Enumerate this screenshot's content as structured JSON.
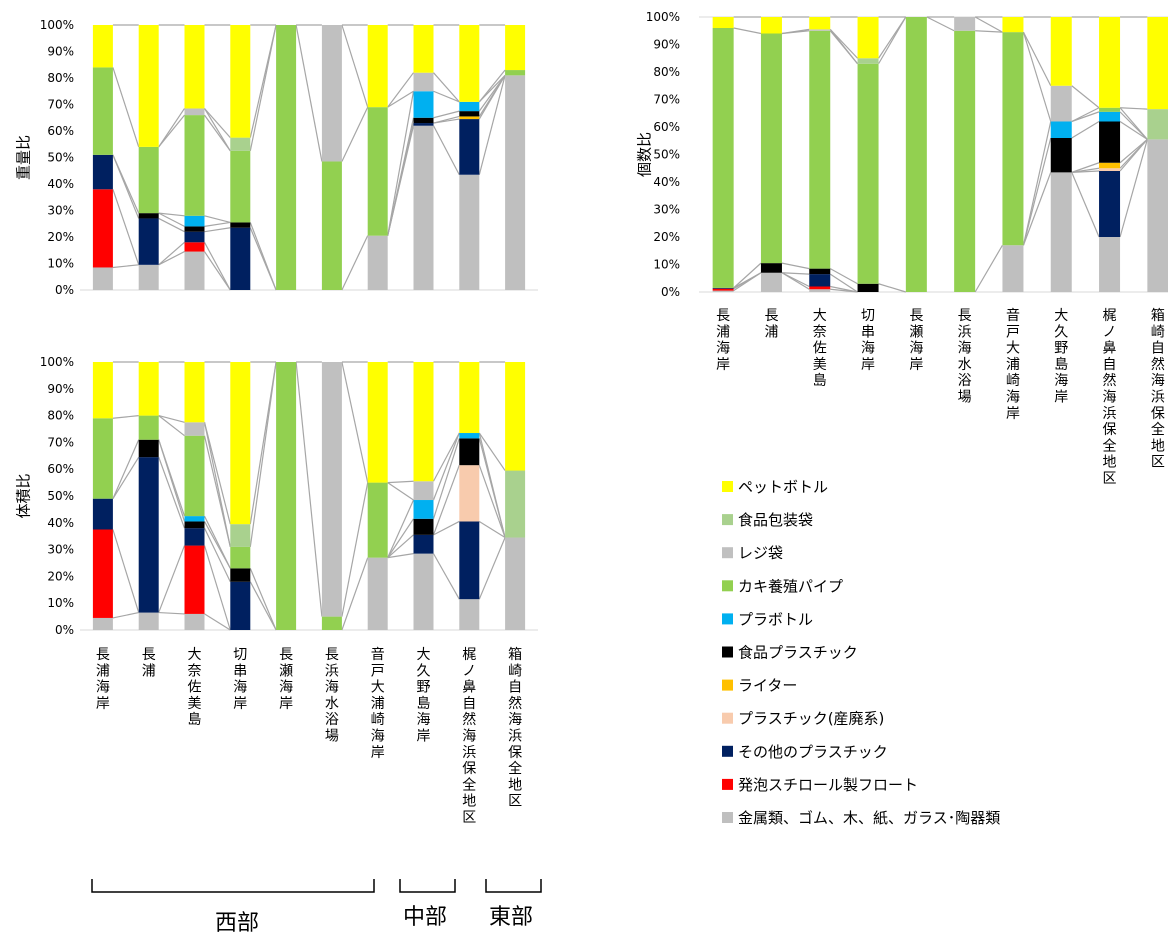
{
  "colors": {
    "pet_bottle": "#FFFF00",
    "food_packaging_bag": "#A9D18E",
    "plastic_bag": "#C0C0C0",
    "oyster_pipe": "#92D050",
    "plastic_bottle": "#00B0F0",
    "food_plastic": "#000000",
    "lighter": "#FFC000",
    "industrial_plastic": "#F8CBAD",
    "other_plastic": "#002060",
    "styrofoam_float": "#FF0000",
    "metals_etc": "#BFBFBF",
    "connector_line": "#A6A6A6",
    "axis_line": "#D9D9D9"
  },
  "legend": [
    {
      "key": "pet_bottle",
      "label": "ペットボトル"
    },
    {
      "key": "food_packaging_bag",
      "label": "食品包装袋"
    },
    {
      "key": "plastic_bag",
      "label": "レジ袋"
    },
    {
      "key": "oyster_pipe",
      "label": "カキ養殖パイプ"
    },
    {
      "key": "plastic_bottle",
      "label": "プラボトル"
    },
    {
      "key": "food_plastic",
      "label": "食品プラスチック"
    },
    {
      "key": "lighter",
      "label": "ライター"
    },
    {
      "key": "industrial_plastic",
      "label": "プラスチック(産廃系)"
    },
    {
      "key": "other_plastic",
      "label": "その他のプラスチック"
    },
    {
      "key": "styrofoam_float",
      "label": "発泡スチロール製フロート"
    },
    {
      "key": "metals_etc",
      "label": "金属類、ゴム、木、紙、ガラス･陶器類"
    }
  ],
  "regions": {
    "west": "西部",
    "central": "中部",
    "east": "東部"
  },
  "chart_data": [
    {
      "type": "bar",
      "stacked": true,
      "normalized": true,
      "ylabel": "重量比",
      "ylim": [
        0,
        100
      ],
      "yticks": [
        "0%",
        "10%",
        "20%",
        "30%",
        "40%",
        "50%",
        "60%",
        "70%",
        "80%",
        "90%",
        "100%"
      ],
      "categories": [
        "長浦海岸",
        "長浦",
        "大奈佐美島",
        "切串海岸",
        "長瀬海岸",
        "長浜海水浴場",
        "音戸大浦崎海岸",
        "大久野島海岸",
        "梶ノ鼻自然海浜保全地区",
        "箱崎自然海浜保全地区"
      ],
      "show_category_labels": false,
      "series": [
        {
          "key": "metals_etc",
          "values": [
            8.5,
            9.5,
            14.5,
            0,
            0,
            0,
            20.5,
            62,
            43.5,
            81
          ]
        },
        {
          "key": "styrofoam_float",
          "values": [
            29.5,
            0,
            3.5,
            0,
            0,
            0,
            0,
            0,
            0,
            0
          ]
        },
        {
          "key": "other_plastic",
          "values": [
            13,
            17.5,
            4,
            23.5,
            0,
            0,
            0,
            1,
            21,
            0
          ]
        },
        {
          "key": "industrial_plastic",
          "values": [
            0,
            0,
            0,
            0,
            0,
            0,
            0,
            0,
            0,
            0
          ]
        },
        {
          "key": "lighter",
          "values": [
            0,
            0,
            0,
            0,
            0,
            0,
            0,
            0,
            1,
            0
          ]
        },
        {
          "key": "food_plastic",
          "values": [
            0,
            2,
            2,
            2,
            0,
            0,
            0,
            2,
            2,
            0
          ]
        },
        {
          "key": "plastic_bottle",
          "values": [
            0,
            0,
            4,
            0,
            0,
            0,
            0,
            10,
            3.5,
            0
          ]
        },
        {
          "key": "oyster_pipe",
          "values": [
            33,
            25,
            38,
            27,
            100,
            48.5,
            48.5,
            0,
            0,
            2
          ]
        },
        {
          "key": "plastic_bag",
          "values": [
            0,
            0,
            2.5,
            0,
            0,
            51.5,
            0,
            7,
            0,
            0
          ]
        },
        {
          "key": "food_packaging_bag",
          "values": [
            0,
            0,
            0,
            5,
            0,
            0,
            0,
            0,
            0,
            0
          ]
        },
        {
          "key": "pet_bottle",
          "values": [
            16,
            46,
            31.5,
            42.5,
            0,
            0,
            31,
            18,
            29,
            17
          ]
        }
      ]
    },
    {
      "type": "bar",
      "stacked": true,
      "normalized": true,
      "ylabel": "個数比",
      "ylim": [
        0,
        100
      ],
      "yticks": [
        "0%",
        "10%",
        "20%",
        "30%",
        "40%",
        "50%",
        "60%",
        "70%",
        "80%",
        "90%",
        "100%"
      ],
      "categories": [
        "長浦海岸",
        "長浦",
        "大奈佐美島",
        "切串海岸",
        "長瀬海岸",
        "長浜海水浴場",
        "音戸大浦崎海岸",
        "大久野島海岸",
        "梶ノ鼻自然海浜保全地区",
        "箱崎自然海浜保全地区"
      ],
      "show_category_labels": true,
      "series": [
        {
          "key": "metals_etc",
          "values": [
            0.5,
            7,
            1,
            0,
            0,
            0,
            17,
            43.5,
            20,
            55.5
          ]
        },
        {
          "key": "styrofoam_float",
          "values": [
            0.7,
            0,
            1,
            0,
            0,
            0,
            0,
            0,
            0,
            0
          ]
        },
        {
          "key": "other_plastic",
          "values": [
            0.3,
            0,
            4.5,
            0,
            0,
            0,
            0,
            0,
            24,
            0
          ]
        },
        {
          "key": "industrial_plastic",
          "values": [
            0,
            0,
            0,
            0,
            0,
            0,
            0,
            0,
            1,
            0
          ]
        },
        {
          "key": "lighter",
          "values": [
            0,
            0,
            0,
            0,
            0,
            0,
            0,
            0,
            2,
            0
          ]
        },
        {
          "key": "food_plastic",
          "values": [
            0,
            3.5,
            2,
            3,
            0,
            0,
            0,
            12.5,
            15,
            0
          ]
        },
        {
          "key": "plastic_bottle",
          "values": [
            0,
            0,
            0,
            0,
            0,
            0,
            0,
            6,
            3.5,
            0
          ]
        },
        {
          "key": "oyster_pipe",
          "values": [
            94.5,
            83.5,
            86.5,
            80,
            100,
            95,
            77.5,
            0,
            1.5,
            0
          ]
        },
        {
          "key": "plastic_bag",
          "values": [
            0,
            0,
            0.5,
            0,
            0,
            5,
            0,
            13,
            0,
            0
          ]
        },
        {
          "key": "food_packaging_bag",
          "values": [
            0,
            0,
            0,
            2,
            0,
            0,
            0,
            0,
            0,
            11
          ]
        },
        {
          "key": "pet_bottle",
          "values": [
            4,
            6,
            4.5,
            15,
            0,
            0,
            5.5,
            25,
            33,
            33.5
          ]
        }
      ]
    },
    {
      "type": "bar",
      "stacked": true,
      "normalized": true,
      "ylabel": "体積比",
      "ylim": [
        0,
        100
      ],
      "yticks": [
        "0%",
        "10%",
        "20%",
        "30%",
        "40%",
        "50%",
        "60%",
        "70%",
        "80%",
        "90%",
        "100%"
      ],
      "categories": [
        "長浦海岸",
        "長浦",
        "大奈佐美島",
        "切串海岸",
        "長瀬海岸",
        "長浜海水浴場",
        "音戸大浦崎海岸",
        "大久野島海岸",
        "梶ノ鼻自然海浜保全地区",
        "箱崎自然海浜保全地区"
      ],
      "show_category_labels": true,
      "series": [
        {
          "key": "metals_etc",
          "values": [
            4.5,
            6.5,
            6,
            0,
            0,
            0,
            27,
            28.5,
            11.5,
            34.5
          ]
        },
        {
          "key": "styrofoam_float",
          "values": [
            33,
            0,
            25.5,
            0,
            0,
            0,
            0,
            0,
            0,
            0
          ]
        },
        {
          "key": "other_plastic",
          "values": [
            11.5,
            58,
            6.5,
            18,
            0,
            0,
            0,
            7,
            29,
            0
          ]
        },
        {
          "key": "industrial_plastic",
          "values": [
            0,
            0,
            0,
            0,
            0,
            0,
            0,
            0,
            21,
            0
          ]
        },
        {
          "key": "lighter",
          "values": [
            0,
            0,
            0,
            0,
            0,
            0,
            0,
            0,
            0,
            0
          ]
        },
        {
          "key": "food_plastic",
          "values": [
            0,
            6.5,
            2.5,
            5,
            0,
            0,
            0,
            6,
            10,
            0
          ]
        },
        {
          "key": "plastic_bottle",
          "values": [
            0,
            0,
            2,
            0,
            0,
            0,
            0,
            7,
            2,
            0
          ]
        },
        {
          "key": "oyster_pipe",
          "values": [
            30,
            9,
            30,
            8,
            100,
            5,
            28,
            0,
            0,
            0
          ]
        },
        {
          "key": "plastic_bag",
          "values": [
            0,
            0,
            5,
            0,
            0,
            95,
            0,
            7,
            0,
            0
          ]
        },
        {
          "key": "food_packaging_bag",
          "values": [
            0,
            0,
            0,
            8.5,
            0,
            0,
            0,
            0,
            0,
            25
          ]
        },
        {
          "key": "pet_bottle",
          "values": [
            21,
            20,
            22.5,
            60.5,
            0,
            0,
            45,
            44.5,
            26.5,
            40.5
          ]
        }
      ]
    }
  ]
}
